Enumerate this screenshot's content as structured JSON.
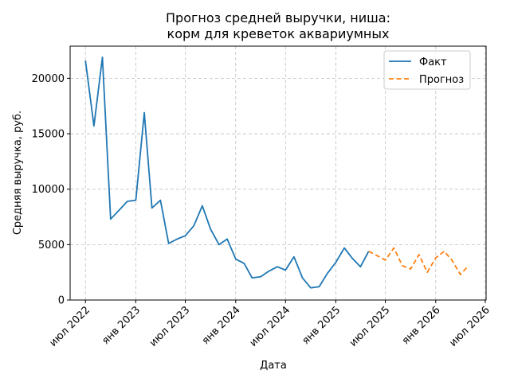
{
  "chart_data": {
    "type": "line",
    "title": "Прогноз средней выручки, ниша:\nкорм для креветок аквариумных",
    "xlabel": "Дата",
    "ylabel": "Средняя выручка, руб.",
    "x_axis_type": "date",
    "xlim": [
      "2022-05-06",
      "2026-07-04"
    ],
    "ylim": [
      0,
      22900
    ],
    "x_ticks": [
      {
        "date": "2022-07-01",
        "label": "июл 2022"
      },
      {
        "date": "2023-01-01",
        "label": "янв 2023"
      },
      {
        "date": "2023-07-01",
        "label": "июл 2023"
      },
      {
        "date": "2024-01-01",
        "label": "янв 2024"
      },
      {
        "date": "2024-07-01",
        "label": "июл 2024"
      },
      {
        "date": "2025-01-01",
        "label": "янв 2025"
      },
      {
        "date": "2025-07-01",
        "label": "июл 2025"
      },
      {
        "date": "2026-01-01",
        "label": "янв 2026"
      },
      {
        "date": "2026-07-01",
        "label": "июл 2026"
      }
    ],
    "y_ticks": [
      {
        "value": 0,
        "label": "0"
      },
      {
        "value": 5000,
        "label": "5000"
      },
      {
        "value": 10000,
        "label": "10000"
      },
      {
        "value": 15000,
        "label": "15000"
      },
      {
        "value": 20000,
        "label": "20000"
      }
    ],
    "grid": true,
    "legend_position": "top-right",
    "series": [
      {
        "name": "Факт",
        "color": "#1f77b4",
        "style": "solid",
        "x": [
          "2022-07-01",
          "2022-08-01",
          "2022-09-01",
          "2022-10-01",
          "2022-11-01",
          "2022-12-01",
          "2023-01-01",
          "2023-02-01",
          "2023-03-01",
          "2023-04-01",
          "2023-05-01",
          "2023-06-01",
          "2023-07-01",
          "2023-08-01",
          "2023-09-01",
          "2023-10-01",
          "2023-11-01",
          "2023-12-01",
          "2024-01-01",
          "2024-02-01",
          "2024-03-01",
          "2024-04-01",
          "2024-05-01",
          "2024-06-01",
          "2024-07-01",
          "2024-08-01",
          "2024-09-01",
          "2024-10-01",
          "2024-11-01",
          "2024-12-01",
          "2025-01-01",
          "2025-02-01",
          "2025-03-01",
          "2025-04-01",
          "2025-05-01"
        ],
        "y": [
          21600,
          15700,
          21900,
          7300,
          8100,
          8900,
          9000,
          16900,
          8300,
          9000,
          5100,
          5500,
          5800,
          6700,
          8500,
          6400,
          5000,
          5500,
          3700,
          3300,
          2000,
          2100,
          2600,
          3000,
          2700,
          3900,
          2000,
          1100,
          1200,
          2400,
          3400,
          4700,
          3800,
          3000,
          4400
        ]
      },
      {
        "name": "Прогноз",
        "color": "#ff7f0e",
        "style": "dashed",
        "x": [
          "2025-05-01",
          "2025-06-01",
          "2025-07-01",
          "2025-08-01",
          "2025-09-01",
          "2025-10-01",
          "2025-11-01",
          "2025-12-01",
          "2026-01-01",
          "2026-02-01",
          "2026-03-01",
          "2026-04-01",
          "2026-05-01"
        ],
        "y": [
          4400,
          4000,
          3600,
          4700,
          3100,
          2800,
          4100,
          2500,
          3800,
          4400,
          3600,
          2300,
          3100
        ]
      }
    ]
  }
}
